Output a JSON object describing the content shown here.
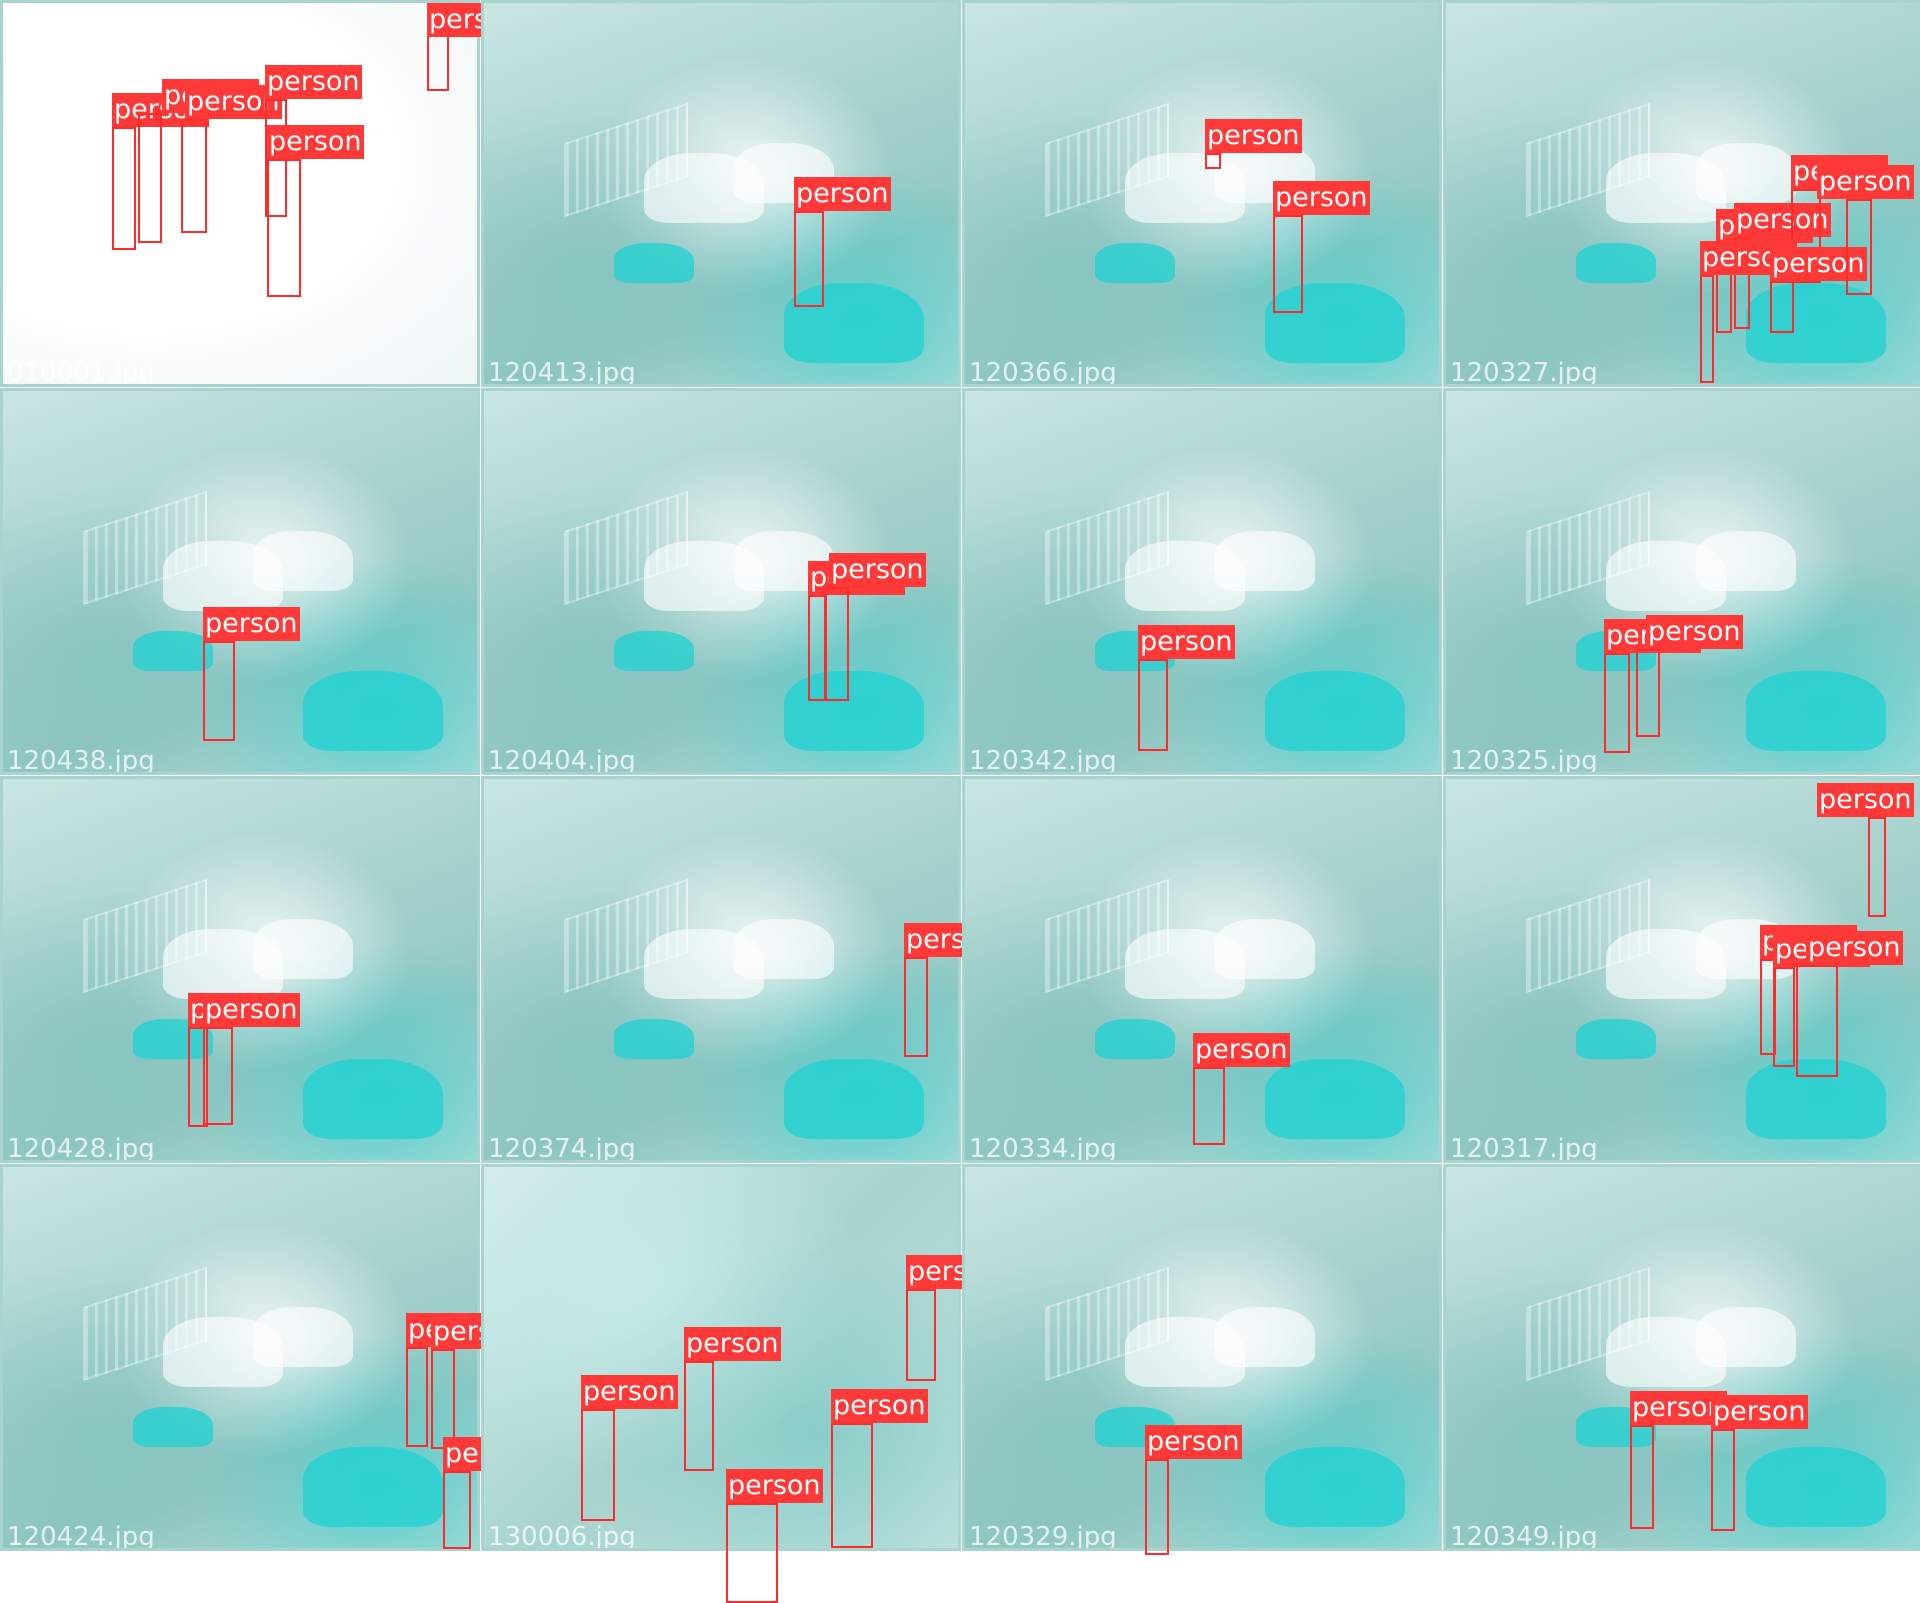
{
  "class_label": "person",
  "colors": {
    "box": "#ff2b2b",
    "tag_background": "#ff3838",
    "tag_text": "#ffffff",
    "tile_tint": "#a9d3cf",
    "car_teal": "#1ed2d2"
  },
  "tiles": [
    {
      "filename": "010001.jpg",
      "scene": "bright",
      "detections": 7
    },
    {
      "filename": "120413.jpg",
      "scene": "street",
      "detections": 1
    },
    {
      "filename": "120366.jpg",
      "scene": "street",
      "detections": 2
    },
    {
      "filename": "120327.jpg",
      "scene": "street",
      "detections": 6
    },
    {
      "filename": "120438.jpg",
      "scene": "street",
      "detections": 1
    },
    {
      "filename": "120404.jpg",
      "scene": "street",
      "detections": 2
    },
    {
      "filename": "120342.jpg",
      "scene": "street",
      "detections": 1
    },
    {
      "filename": "120325.jpg",
      "scene": "street",
      "detections": 2
    },
    {
      "filename": "120428.jpg",
      "scene": "street",
      "detections": 2
    },
    {
      "filename": "120374.jpg",
      "scene": "street",
      "detections": 1
    },
    {
      "filename": "120334.jpg",
      "scene": "street",
      "detections": 1
    },
    {
      "filename": "120317.jpg",
      "scene": "street",
      "detections": 4
    },
    {
      "filename": "120424.jpg",
      "scene": "street",
      "detections": 3
    },
    {
      "filename": "130006.jpg",
      "scene": "trees",
      "detections": 5
    },
    {
      "filename": "120329.jpg",
      "scene": "street",
      "detections": 1
    },
    {
      "filename": "120349.jpg",
      "scene": "street",
      "detections": 2
    }
  ]
}
